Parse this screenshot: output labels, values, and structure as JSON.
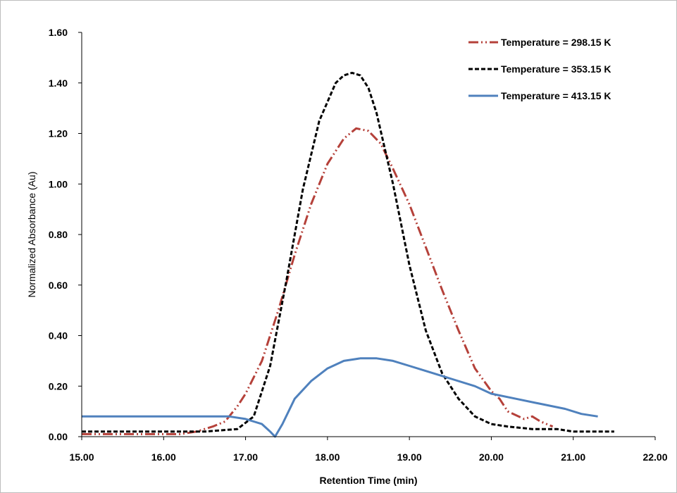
{
  "chart_data": {
    "type": "line",
    "title": "",
    "xlabel": "Retention Time (min)",
    "ylabel": "Normalized Absorbance (Au)",
    "xlim": [
      15.0,
      22.0
    ],
    "ylim": [
      0.0,
      1.6
    ],
    "x_ticks": [
      15,
      16,
      17,
      18,
      19,
      20,
      21,
      22
    ],
    "x_tick_labels": [
      "15.00",
      "16.00",
      "17.00",
      "18.00",
      "19.00",
      "20.00",
      "21.00",
      "22.00"
    ],
    "y_ticks": [
      0,
      0.2,
      0.4,
      0.6,
      0.8,
      1.0,
      1.2,
      1.4,
      1.6
    ],
    "y_tick_labels": [
      "0.00",
      "0.20",
      "0.40",
      "0.60",
      "0.80",
      "1.00",
      "1.20",
      "1.40",
      "1.60"
    ],
    "grid": false,
    "legend_position": "top-right",
    "series": [
      {
        "name": "Temperature = 298.15 K",
        "color": "#b5413a",
        "dash": "dash-dot-dot",
        "x": [
          15.0,
          15.3,
          15.6,
          15.9,
          16.2,
          16.4,
          16.6,
          16.75,
          16.9,
          17.0,
          17.2,
          17.4,
          17.6,
          17.8,
          18.0,
          18.2,
          18.35,
          18.5,
          18.65,
          18.8,
          19.0,
          19.2,
          19.4,
          19.6,
          19.8,
          20.0,
          20.1,
          20.2,
          20.4,
          20.5,
          20.6,
          20.75
        ],
        "y": [
          0.01,
          0.01,
          0.01,
          0.01,
          0.01,
          0.02,
          0.04,
          0.06,
          0.12,
          0.17,
          0.3,
          0.5,
          0.72,
          0.92,
          1.08,
          1.18,
          1.22,
          1.21,
          1.16,
          1.06,
          0.92,
          0.75,
          0.58,
          0.42,
          0.27,
          0.18,
          0.15,
          0.1,
          0.07,
          0.08,
          0.06,
          0.04
        ]
      },
      {
        "name": "Temperature = 353.15 K",
        "color": "#000000",
        "dash": "dash",
        "x": [
          15.0,
          15.5,
          16.0,
          16.5,
          16.9,
          17.1,
          17.3,
          17.5,
          17.7,
          17.9,
          18.1,
          18.2,
          18.3,
          18.4,
          18.5,
          18.6,
          18.8,
          19.0,
          19.2,
          19.4,
          19.6,
          19.8,
          20.0,
          20.2,
          20.5,
          20.8,
          21.0,
          21.2,
          21.4,
          21.5
        ],
        "y": [
          0.02,
          0.02,
          0.02,
          0.02,
          0.03,
          0.08,
          0.28,
          0.62,
          0.98,
          1.25,
          1.4,
          1.43,
          1.44,
          1.43,
          1.38,
          1.28,
          1.0,
          0.68,
          0.42,
          0.25,
          0.15,
          0.08,
          0.05,
          0.04,
          0.03,
          0.03,
          0.02,
          0.02,
          0.02,
          0.02
        ]
      },
      {
        "name": "Temperature = 413.15 K",
        "color": "#4f81bd",
        "dash": "solid",
        "x": [
          15.0,
          15.3,
          15.6,
          16.0,
          16.4,
          16.8,
          17.0,
          17.1,
          17.2,
          17.3,
          17.36,
          17.45,
          17.6,
          17.8,
          18.0,
          18.2,
          18.4,
          18.6,
          18.8,
          19.0,
          19.2,
          19.5,
          19.8,
          20.0,
          20.3,
          20.6,
          20.9,
          21.1,
          21.3
        ],
        "y": [
          0.08,
          0.08,
          0.08,
          0.08,
          0.08,
          0.08,
          0.07,
          0.06,
          0.05,
          0.02,
          0.0,
          0.05,
          0.15,
          0.22,
          0.27,
          0.3,
          0.31,
          0.31,
          0.3,
          0.28,
          0.26,
          0.23,
          0.2,
          0.17,
          0.15,
          0.13,
          0.11,
          0.09,
          0.08
        ]
      }
    ]
  }
}
